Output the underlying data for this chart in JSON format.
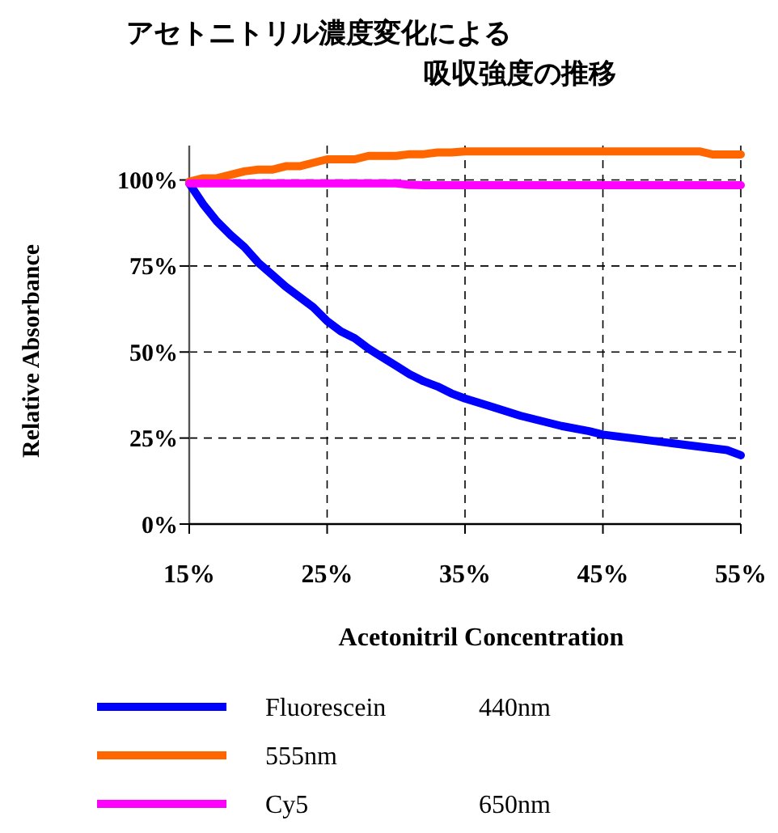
{
  "chart_data": {
    "type": "line",
    "title": "アセトニトリル濃度変化による",
    "subtitle": "吸収強度の推移",
    "xlabel": "Acetonitril Concentration",
    "ylabel": "Relative Absorbance",
    "xlim": [
      15,
      55
    ],
    "xticks": [
      {
        "value": 15,
        "label": "15%"
      },
      {
        "value": 25,
        "label": "25%"
      },
      {
        "value": 35,
        "label": "35%"
      },
      {
        "value": 45,
        "label": "45%"
      },
      {
        "value": 55,
        "label": "55%"
      }
    ],
    "ylim": [
      0,
      110
    ],
    "yticks": [
      {
        "value": 0,
        "label": "0%"
      },
      {
        "value": 25,
        "label": "25%"
      },
      {
        "value": 50,
        "label": "50%"
      },
      {
        "value": 75,
        "label": "75%"
      },
      {
        "value": 100,
        "label": "100%"
      }
    ],
    "grid": true,
    "legend": "bottom",
    "line_style": "solid",
    "marker": "none",
    "series": [
      {
        "name": "Fluorescein 440nm",
        "color": "#0000ff",
        "x": [
          15,
          16,
          17,
          18,
          19,
          20,
          21,
          22,
          23,
          24,
          25,
          26,
          27,
          28,
          29,
          30,
          31,
          32,
          33,
          34,
          35,
          37,
          39,
          40,
          42,
          44,
          45,
          47,
          49,
          50,
          52,
          54,
          55
        ],
        "values": [
          99,
          93,
          88,
          84,
          80.5,
          76,
          72.5,
          69,
          66,
          63,
          59,
          56,
          54,
          51,
          48.5,
          46,
          43.5,
          41.5,
          40,
          38,
          36.5,
          34,
          31.5,
          30.5,
          28.5,
          27,
          26,
          25,
          24,
          23.5,
          22.5,
          21.5,
          20
        ]
      },
      {
        "name": "555nm",
        "color": "#ff6600",
        "x": [
          15,
          16,
          17,
          18,
          19,
          20,
          21,
          22,
          23,
          24,
          25,
          26,
          27,
          28,
          29,
          30,
          31,
          32,
          33,
          34,
          35,
          45,
          50,
          52,
          53,
          55
        ],
        "values": [
          99.5,
          100.5,
          100.5,
          101.5,
          102.5,
          103,
          103,
          104,
          104,
          105,
          106,
          106,
          106,
          107,
          107,
          107,
          107.5,
          107.5,
          108,
          108,
          108.3,
          108.3,
          108.3,
          108.3,
          107.4,
          107.4
        ]
      },
      {
        "name": "Cy5 650nm",
        "color": "#ff00ff",
        "x": [
          15,
          17,
          30,
          31,
          32,
          55
        ],
        "values": [
          99,
          99,
          99,
          98.6,
          98.5,
          98.5
        ]
      }
    ]
  }
}
